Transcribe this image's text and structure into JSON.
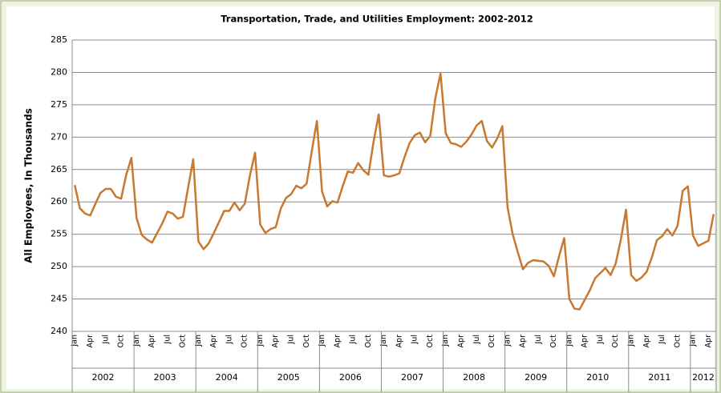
{
  "chart_data": {
    "type": "line",
    "title": "Transportation, Trade, and Utilities Employment: 2002-2012",
    "y_label": "All Employees, In Thousands",
    "categories": [
      "Jan",
      null,
      null,
      "Apr",
      null,
      null,
      "Jul",
      null,
      null,
      "Oct",
      null,
      null,
      "Jan",
      null,
      null,
      "Apr",
      null,
      null,
      "Jul",
      null,
      null,
      "Oct",
      null,
      null,
      "Jan",
      null,
      null,
      "Apr",
      null,
      null,
      "Jul",
      null,
      null,
      "Oct",
      null,
      null,
      "Jan",
      null,
      null,
      "Apr",
      null,
      null,
      "Jul",
      null,
      null,
      "Oct",
      null,
      null,
      "Jan",
      null,
      null,
      "Apr",
      null,
      null,
      "Jul",
      null,
      null,
      "Oct",
      null,
      null,
      "Jan",
      null,
      null,
      "Apr",
      null,
      null,
      "Jul",
      null,
      null,
      "Oct",
      null,
      null,
      "Jan",
      null,
      null,
      "Apr",
      null,
      null,
      "Jul",
      null,
      null,
      "Oct",
      null,
      null,
      "Jan",
      null,
      null,
      "Apr",
      null,
      null,
      "Jul",
      null,
      null,
      "Oct",
      null,
      null,
      "Jan",
      null,
      null,
      "Apr",
      null,
      null,
      "Jul",
      null,
      null,
      "Oct",
      null,
      null,
      "Jan",
      null,
      null,
      "Apr",
      null,
      null,
      "Jul",
      null,
      null,
      "Oct",
      null,
      null,
      "Jan",
      null,
      null,
      "Apr",
      null
    ],
    "years": [
      "2002",
      "2003",
      "2004",
      "2005",
      "2006",
      "2007",
      "2008",
      "2009",
      "2010",
      "2011",
      "2012"
    ],
    "series": [
      {
        "name": "All Employees",
        "color": "#c8782f",
        "values": [
          262.6,
          259,
          258.2,
          257.9,
          259.7,
          261.4,
          262,
          262,
          260.8,
          260.5,
          264.2,
          266.8,
          257.5,
          254.9,
          254.2,
          253.7,
          255.2,
          256.7,
          258.5,
          258.2,
          257.4,
          257.7,
          262.2,
          266.6,
          253.9,
          252.7,
          253.6,
          255.2,
          256.9,
          258.6,
          258.6,
          259.9,
          258.7,
          259.7,
          264.1,
          267.6,
          256.5,
          255.2,
          255.8,
          256.1,
          259,
          260.6,
          261.2,
          262.5,
          262.1,
          262.8,
          267.8,
          272.5,
          261.6,
          259.3,
          260.1,
          259.9,
          262.4,
          264.7,
          264.5,
          266,
          264.9,
          264.2,
          269.3,
          273.5,
          264.1,
          263.9,
          264.1,
          264.4,
          266.9,
          269.1,
          270.3,
          270.7,
          269.2,
          270.2,
          276.1,
          279.8,
          270.6,
          269.1,
          268.9,
          268.5,
          269.3,
          270.4,
          271.8,
          272.5,
          269.4,
          268.4,
          269.8,
          271.7,
          259.2,
          255,
          252.2,
          249.6,
          250.6,
          251,
          250.9,
          250.8,
          250.1,
          248.5,
          251.6,
          254.4,
          245,
          243.5,
          243.4,
          244.9,
          246.4,
          248.2,
          249,
          249.8,
          248.7,
          250.5,
          254.2,
          258.8,
          248.7,
          247.8,
          248.3,
          249.2,
          251.4,
          254.1,
          254.7,
          255.8,
          254.8,
          256.3,
          261.7,
          262.4,
          254.8,
          253.2,
          253.6,
          254,
          258.1
        ]
      }
    ],
    "ylim": [
      240,
      285
    ],
    "yticks": [
      240,
      245,
      250,
      255,
      260,
      265,
      270,
      275,
      280,
      285
    ],
    "grid": true
  }
}
